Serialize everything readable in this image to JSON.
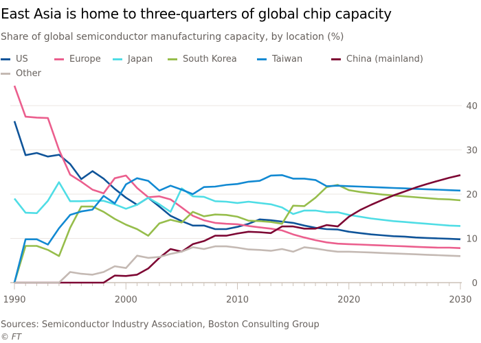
{
  "title": "East Asia is home to three-quarters of global chip capacity",
  "subtitle": "Share of global semiconductor manufacturing capacity, by location (%)",
  "source": "Sources: Semiconductor Industry Association, Boston Consulting Group",
  "credit": "© FT",
  "chart_data": {
    "type": "line",
    "title": "East Asia is home to three-quarters of global chip capacity",
    "subtitle": "Share of global semiconductor manufacturing capacity, by location (%)",
    "xlabel": "",
    "ylabel": "",
    "xlim": [
      1990,
      2030
    ],
    "ylim": [
      0,
      45
    ],
    "x_ticks": [
      "1990",
      "2000",
      "2010",
      "2020",
      "2030"
    ],
    "y_ticks": [
      "0",
      "10",
      "20",
      "30",
      "40"
    ],
    "y_axis_side": "right",
    "grid": true,
    "legend": "top",
    "x_start": 1990,
    "series": [
      {
        "name": "US",
        "color": "#0f5499",
        "values": [
          36.5,
          28.8,
          29.3,
          28.5,
          28.9,
          26.8,
          23.4,
          25.2,
          23.5,
          21.2,
          19.2,
          17.6,
          19.2,
          17.2,
          15.1,
          13.9,
          12.9,
          12.9,
          12.1,
          12.1,
          12.6,
          13.3,
          14.3,
          14.1,
          13.8,
          13.5,
          12.9,
          12.4,
          12.1,
          12.0,
          11.5,
          11.2,
          10.9,
          10.7,
          10.5,
          10.4,
          10.2,
          10.1,
          10.0,
          9.9,
          9.8
        ]
      },
      {
        "name": "Europe",
        "color": "#eb5e8d",
        "values": [
          44.5,
          37.5,
          37.3,
          37.2,
          30,
          24.4,
          22.8,
          21,
          20.2,
          23.6,
          24.2,
          21.4,
          19.3,
          19.5,
          18.8,
          17,
          15.1,
          14.1,
          13.5,
          13.3,
          13.2,
          12.8,
          12.5,
          12.2,
          11.8,
          10.9,
          10.2,
          9.6,
          9.1,
          8.8,
          8.7,
          8.6,
          8.5,
          8.4,
          8.3,
          8.2,
          8.1,
          8.0,
          7.9,
          7.9,
          7.8
        ]
      },
      {
        "name": "Japan",
        "color": "#4fdde5",
        "values": [
          19,
          15.8,
          15.7,
          18.5,
          22.7,
          18.4,
          18.4,
          18.5,
          18.5,
          17.7,
          16.7,
          17.6,
          19.2,
          17.7,
          16,
          21.3,
          19.5,
          19.4,
          18.4,
          18.3,
          18,
          18.3,
          18,
          17.7,
          17,
          15.5,
          16.3,
          16.3,
          15.9,
          15.9,
          15.3,
          14.9,
          14.5,
          14.2,
          13.9,
          13.7,
          13.5,
          13.3,
          13.1,
          12.9,
          12.8
        ]
      },
      {
        "name": "South Korea",
        "color": "#96bd4b",
        "values": [
          0,
          8.3,
          8.3,
          7.4,
          6,
          12.4,
          17.2,
          17.2,
          16,
          14.4,
          13.1,
          12.1,
          10.6,
          13.4,
          14.2,
          13.6,
          16,
          15,
          15.4,
          15.3,
          14.9,
          14,
          13.9,
          13.7,
          13.3,
          17.4,
          17.3,
          19.2,
          21.6,
          22.1,
          20.9,
          20.5,
          20.2,
          19.9,
          19.7,
          19.5,
          19.3,
          19.1,
          18.9,
          18.8,
          18.6
        ]
      },
      {
        "name": "Taiwan",
        "color": "#1189d2",
        "values": [
          0,
          9.8,
          9.8,
          8.6,
          12.3,
          15.3,
          16.1,
          16.5,
          19.6,
          17.9,
          22.2,
          23.6,
          23,
          20.8,
          21.9,
          21,
          20,
          21.6,
          21.7,
          22.1,
          22.3,
          22.8,
          23,
          24.2,
          24.3,
          23.5,
          23.5,
          23.2,
          21.8,
          21.9,
          21.8,
          21.7,
          21.6,
          21.5,
          21.4,
          21.3,
          21.2,
          21.1,
          21.0,
          20.9,
          20.8
        ]
      },
      {
        "name": "China (mainland)",
        "color": "#7d0633",
        "values": [
          0,
          0,
          0,
          0,
          0,
          0,
          0,
          0,
          0,
          1.6,
          1.5,
          1.8,
          3.2,
          5.6,
          7.6,
          7.0,
          8.7,
          9.4,
          10.6,
          10.6,
          11.1,
          11.5,
          11.4,
          11.2,
          12.7,
          12.7,
          12.2,
          12.2,
          13.0,
          12.7,
          14.9,
          16.4,
          17.6,
          18.7,
          19.7,
          20.6,
          21.5,
          22.3,
          23.0,
          23.7,
          24.3
        ]
      },
      {
        "name": "Other",
        "color": "#c4b9b3",
        "values": [
          0,
          0,
          0,
          0,
          0,
          2.4,
          2.0,
          1.8,
          2.4,
          3.7,
          3.3,
          6.1,
          5.6,
          5.8,
          6.5,
          7.0,
          8.0,
          7.6,
          8.2,
          8.2,
          7.9,
          7.5,
          7.4,
          7.2,
          7.6,
          7.0,
          8.0,
          7.7,
          7.3,
          7.0,
          7.0,
          6.9,
          6.8,
          6.7,
          6.6,
          6.5,
          6.4,
          6.3,
          6.2,
          6.1,
          6.0
        ]
      }
    ]
  }
}
